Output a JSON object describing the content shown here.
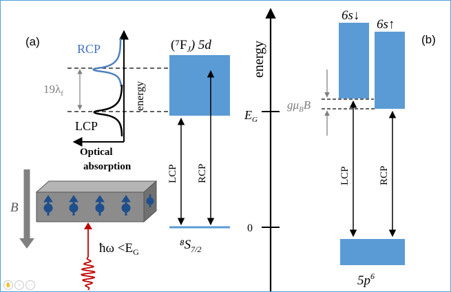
{
  "panel_a": {
    "label": "(a)",
    "rcp_label": "RCP",
    "lcp_label": "LCP",
    "splitting_label": "19λ",
    "splitting_sub": "f",
    "energy_axis_label": "energy",
    "optical_absorption_line1": "Optical",
    "optical_absorption_line2": "absorption",
    "upper_state_label": "(⁷F",
    "upper_state_sub": "J",
    "upper_state_suffix": ") 5d",
    "ground_state_label": "⁸S",
    "ground_state_sub": "7/2",
    "lcp_transition": "LCP",
    "rcp_transition": "RCP",
    "field_label": "B",
    "photon_label": "ħω <E",
    "photon_sub": "G"
  },
  "panel_b": {
    "label": "(b)",
    "energy_axis_label": "energy",
    "eg_label": "E",
    "eg_sub": "G",
    "zero_label": "0",
    "spin_down_label": "6s↓",
    "spin_up_label": "6s↑",
    "zeeman_label": "gμ",
    "zeeman_sub": "B",
    "zeeman_suffix": "B",
    "valence_label": "5p",
    "valence_sup": "6",
    "lcp_transition": "LCP",
    "rcp_transition": "RCP"
  },
  "colors": {
    "band_fill": "#5b9bd5",
    "rcp_curve": "#4f81bd",
    "lcp_curve": "#000000",
    "spin": "#1f4e8c",
    "photon": "#c00000",
    "field_arrow": "#808080",
    "crystal_top": "#b0b0b0",
    "crystal_front": "#8c8c8c"
  },
  "icons": [
    "hand-icon",
    "zoom-icon",
    "more-icon"
  ]
}
